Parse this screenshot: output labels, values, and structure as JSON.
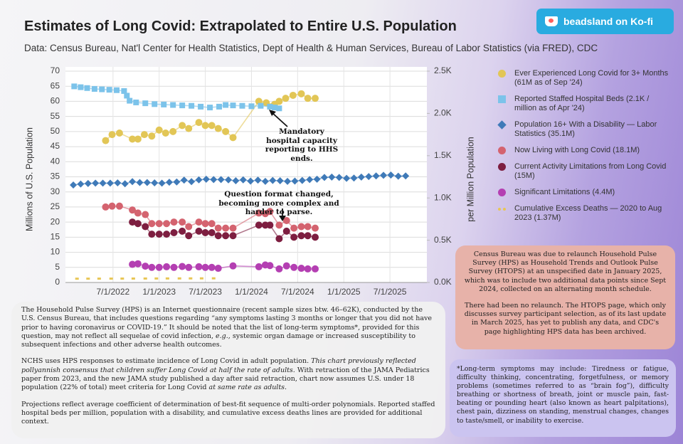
{
  "header": {
    "title": "Estimates of Long Covid: Extrapolated to Entire U.S. Population",
    "subtitle": "Data: Census Bureau, Nat'l Center for Health Statistics, Dept of Health & Human Services, Bureau of Labor Statistics (via FRED), CDC",
    "kofi": "beadsland on Ko-fi"
  },
  "chart_data": {
    "type": "line",
    "y_label": "Millions of U.S. Population",
    "y2_label": "per Million Population",
    "xlim": [
      2021.985,
      2025.9
    ],
    "ylim": [
      0,
      70
    ],
    "y2lim": [
      0,
      2500
    ],
    "xticks": [
      {
        "value": 2022.5,
        "label": "7/1/2022"
      },
      {
        "value": 2023.0,
        "label": "1/1/2023"
      },
      {
        "value": 2023.5,
        "label": "7/1/2023"
      },
      {
        "value": 2024.0,
        "label": "1/1/2024"
      },
      {
        "value": 2024.5,
        "label": "7/1/2024"
      },
      {
        "value": 2025.0,
        "label": "1/1/2025"
      },
      {
        "value": 2025.5,
        "label": "7/1/2025"
      }
    ],
    "yticks": [
      0,
      5,
      10,
      15,
      20,
      25,
      30,
      35,
      40,
      45,
      50,
      55,
      60,
      65,
      70
    ],
    "y2ticks": [
      {
        "value": 0,
        "label": "0.0K"
      },
      {
        "value": 500,
        "label": "0.5K"
      },
      {
        "value": 1000,
        "label": "1.0K"
      },
      {
        "value": 1500,
        "label": "1.5K"
      },
      {
        "value": 2000,
        "label": "2.0K"
      },
      {
        "value": 2500,
        "label": "2.5K"
      }
    ],
    "grid": true,
    "series": [
      {
        "name": "Ever Experienced Long Covid for 3+ Months (61M as of Sep '24)",
        "color": "#e2c656",
        "marker": "circle",
        "x": [
          2022.42,
          2022.49,
          2022.57,
          2022.71,
          2022.77,
          2022.84,
          2022.92,
          2023.0,
          2023.07,
          2023.15,
          2023.25,
          2023.32,
          2023.43,
          2023.5,
          2023.57,
          2023.64,
          2023.72,
          2023.8,
          2024.08,
          2024.16,
          2024.25,
          2024.3,
          2024.37,
          2024.45,
          2024.54,
          2024.61,
          2024.69
        ],
        "values": [
          47,
          49,
          49.5,
          47.5,
          47.5,
          49,
          48.5,
          50.5,
          49.5,
          50,
          52,
          51,
          53,
          52,
          52,
          51,
          50,
          48,
          60,
          59.5,
          59,
          60,
          61,
          62,
          62.5,
          61,
          61
        ]
      },
      {
        "name": "Reported Staffed Hospital Beds (2.1K / million as of Apr '24)",
        "color": "#7cc3ea",
        "marker": "square",
        "axis": "y2",
        "x": [
          2022.08,
          2022.15,
          2022.22,
          2022.3,
          2022.38,
          2022.46,
          2022.54,
          2022.62,
          2022.65,
          2022.68,
          2022.75,
          2022.85,
          2022.95,
          2023.05,
          2023.15,
          2023.25,
          2023.35,
          2023.45,
          2023.55,
          2023.65,
          2023.72,
          2023.8,
          2023.9,
          2024.0,
          2024.1,
          2024.2,
          2024.25,
          2024.3
        ],
        "values": [
          2320,
          2310,
          2300,
          2290,
          2285,
          2280,
          2275,
          2265,
          2210,
          2150,
          2130,
          2120,
          2110,
          2105,
          2100,
          2095,
          2090,
          2080,
          2070,
          2080,
          2100,
          2095,
          2090,
          2085,
          2090,
          2080,
          2070,
          2060
        ]
      },
      {
        "name": "Population 16+ With a Disability — Labor Statistics (35.1M)",
        "color": "#3f7ab8",
        "marker": "diamond",
        "x": [
          2022.07,
          2022.15,
          2022.23,
          2022.31,
          2022.39,
          2022.47,
          2022.55,
          2022.63,
          2022.71,
          2022.79,
          2022.87,
          2022.95,
          2023.03,
          2023.11,
          2023.19,
          2023.27,
          2023.35,
          2023.43,
          2023.51,
          2023.59,
          2023.67,
          2023.75,
          2023.83,
          2023.91,
          2023.99,
          2024.07,
          2024.15,
          2024.23,
          2024.31,
          2024.39,
          2024.47,
          2024.55,
          2024.63,
          2024.71,
          2024.79,
          2024.87,
          2024.95,
          2025.03,
          2025.11,
          2025.19,
          2025.27,
          2025.35,
          2025.43,
          2025.51,
          2025.59,
          2025.67
        ],
        "values": [
          32.3,
          32.6,
          32.8,
          32.9,
          32.9,
          32.9,
          33.0,
          32.7,
          33.4,
          33.1,
          33.1,
          33.0,
          32.9,
          33.2,
          33.3,
          33.9,
          33.4,
          34.0,
          34.2,
          34.1,
          34.1,
          34.0,
          33.7,
          34.0,
          33.6,
          33.9,
          33.5,
          33.8,
          33.7,
          33.5,
          33.6,
          33.8,
          34.1,
          34.2,
          34.8,
          34.9,
          34.8,
          34.5,
          34.6,
          34.9,
          35.1,
          35.3,
          35.5,
          35.6,
          35.2,
          35.3
        ]
      },
      {
        "name": "Now Living with Long Covid (18.1M)",
        "color": "#d4636f",
        "marker": "circle",
        "x": [
          2022.42,
          2022.49,
          2022.57,
          2022.71,
          2022.77,
          2022.85,
          2022.92,
          2023.0,
          2023.08,
          2023.16,
          2023.25,
          2023.32,
          2023.43,
          2023.5,
          2023.57,
          2023.64,
          2023.72,
          2023.8,
          2024.08,
          2024.15,
          2024.2,
          2024.3,
          2024.38,
          2024.46,
          2024.54,
          2024.61,
          2024.69
        ],
        "values": [
          25,
          25.3,
          25.3,
          24,
          23,
          22.5,
          19.5,
          19.5,
          19.5,
          20,
          20,
          18.5,
          20,
          19.5,
          19.5,
          18,
          18,
          18,
          23,
          22.8,
          23.5,
          19,
          20.5,
          18,
          18.5,
          18.5,
          18
        ]
      },
      {
        "name": "Current Activity Limitations from Long Covid (15M)",
        "color": "#7d1e40",
        "marker": "circle",
        "x": [
          2022.71,
          2022.77,
          2022.85,
          2022.92,
          2023.0,
          2023.08,
          2023.16,
          2023.25,
          2023.32,
          2023.43,
          2023.5,
          2023.57,
          2023.64,
          2023.72,
          2023.8,
          2024.08,
          2024.15,
          2024.2,
          2024.3,
          2024.38,
          2024.46,
          2024.54,
          2024.61,
          2024.69
        ],
        "values": [
          20,
          19.5,
          18.5,
          16,
          16,
          16,
          16.5,
          17,
          15.5,
          17,
          16.5,
          16.5,
          15.5,
          15.5,
          15.5,
          19,
          19,
          19,
          14.5,
          17,
          15,
          15.5,
          15.5,
          15
        ]
      },
      {
        "name": "Significant Limitations (4.4M)",
        "color": "#b43fb2",
        "marker": "circle",
        "x": [
          2022.71,
          2022.77,
          2022.85,
          2022.92,
          2023.0,
          2023.08,
          2023.16,
          2023.25,
          2023.32,
          2023.43,
          2023.5,
          2023.57,
          2023.64,
          2023.8,
          2024.08,
          2024.15,
          2024.2,
          2024.3,
          2024.38,
          2024.46,
          2024.54,
          2024.61,
          2024.69
        ],
        "values": [
          6,
          6.2,
          5.4,
          5,
          5,
          5.2,
          5,
          5.3,
          5,
          5.2,
          5,
          5,
          4.7,
          5.5,
          5.2,
          5.8,
          5.6,
          4.5,
          5.5,
          5,
          4.7,
          4.5,
          4.5
        ]
      },
      {
        "name": "Cumulative Excess Deaths — 2020 to Aug 2023 (1.37M)",
        "color": "#e8c655",
        "marker": "dash",
        "x": [
          2022.11,
          2022.23,
          2022.35,
          2022.48,
          2022.6,
          2022.72,
          2022.85,
          2022.97,
          2023.09,
          2023.22,
          2023.34,
          2023.46,
          2023.59
        ],
        "values": [
          1.25,
          1.26,
          1.27,
          1.28,
          1.29,
          1.3,
          1.31,
          1.32,
          1.33,
          1.34,
          1.35,
          1.36,
          1.37
        ]
      }
    ],
    "annotations": [
      "Mandatory hospital capacity reporting to HHS ends.",
      "Question format changed, becoming more complex and harder to parse."
    ]
  },
  "notes": {
    "left": [
      [
        "The Household Pulse Survey (HPS) is an Internet questionnaire (recent sample sizes btw. 46–62K), conducted by the U.S. Census Bureau, that includes questions regarding “any symptoms lasting 3 months or longer that you did not have prior to having coronavirus or COVID-19.” It should be noted that the list of long-term symptoms*, provided for this question, may not reflect all sequelae of covid infection, ",
        "e.g.",
        ", systemic organ damage or increased susceptibility to subsequent infections and other adverse health outcomes."
      ],
      [
        "NCHS uses HPS responses to estimate incidence of Long Covid in adult population. ",
        "This chart previously reflected pollyannish consensus that children suffer Long Covid at half the rate of adults.",
        " With retraction of the JAMA Pediatrics paper from 2023, and the new JAMA study published a day after said retraction, chart now assumes U.S. under 18 population (22% of total) meet criteria for Long Covid ",
        "at same rate as adults",
        "."
      ],
      [
        "Projections reflect average coefficient of determination of best-fit sequence of multi-order polynomials. Reported staffed hospital beds per million, population with a disability, and cumulative excess deaths lines are provided for additional context."
      ]
    ],
    "right": [
      "Census Bureau was due to relaunch Household Pulse Survey (HPS) as Household Trends and Outlook Pulse Survey (HTOPS) at an unspecified date in January 2025, which was to include two additional data points since Sept 2024, collected on an alternating month schedule.",
      "There had been no relaunch. The HTOPS page, which only discusses survey participant selection, as of its last update in March 2025, has yet to publish any data, and CDC's page highlighting HPS  data has been archived."
    ],
    "footnote": "*Long-term symptoms may include: Tiredness or fatigue, difficulty thinking, concentrating, forgetfulness, or memory problems (sometimes referred to as “brain fog”), difficulty breathing or shortness of breath, joint or muscle pain, fast-beating or pounding heart (also known as heart palpitations), chest pain, dizziness on standing, menstrual changes, changes to taste/smell, or inability to exercise."
  }
}
